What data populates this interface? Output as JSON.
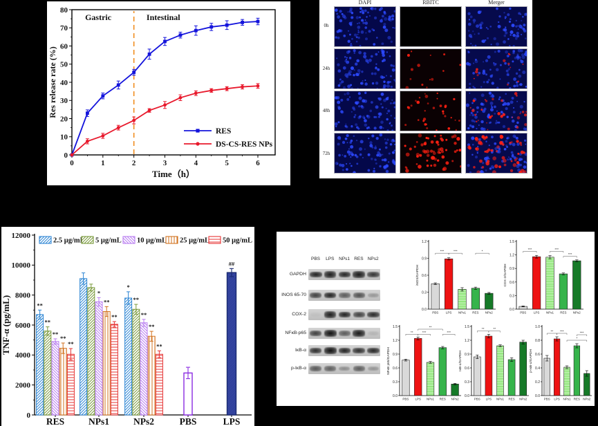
{
  "figure": {
    "background": "#000000"
  },
  "microscopy": {
    "columns": [
      "DAPI",
      "RBITC",
      "Merger"
    ],
    "rows": [
      "0h",
      "24h",
      "48h",
      "72h"
    ],
    "blue_dots_per_image": 88,
    "red_dots_per_row": [
      0,
      14,
      34,
      62
    ],
    "colors": {
      "dapi_bg": "#04084a",
      "rbitc_bg": "#0a0103",
      "merge_bg": "#060a4c",
      "blue_dot": "#2c49ff",
      "red_dot": "#ff2012"
    }
  },
  "western_blot": {
    "lanes": [
      "PBS",
      "LPS",
      "NPs1",
      "RES",
      "NPs2"
    ],
    "rows": [
      {
        "label": "GAPDH",
        "intensities": [
          0.88,
          0.9,
          0.86,
          0.92,
          0.78
        ]
      },
      {
        "label": "INOS 65-70",
        "intensities": [
          0.72,
          0.88,
          0.58,
          0.64,
          0.26
        ]
      },
      {
        "label": "COX-2",
        "intensities": [
          0.04,
          0.9,
          0.88,
          0.72,
          0.84
        ]
      },
      {
        "label": "NFκB-p65",
        "intensities": [
          0.72,
          0.97,
          0.58,
          0.92,
          0.1
        ]
      },
      {
        "label": "IκB-α",
        "intensities": [
          0.82,
          0.97,
          0.88,
          0.82,
          0.86
        ]
      },
      {
        "label": "p-IκB-α",
        "intensities": [
          0.6,
          0.56,
          0.32,
          0.58,
          0.28
        ]
      }
    ]
  },
  "chart_data": [
    {
      "id": "res-release",
      "type": "line",
      "xlabel": "Time（h）",
      "ylabel": "Res release rate (%)",
      "xlim": [
        0,
        6
      ],
      "ylim": [
        0,
        80
      ],
      "xticks": [
        0,
        1,
        2,
        3,
        4,
        5,
        6
      ],
      "yticks": [
        0,
        10,
        20,
        30,
        40,
        50,
        60,
        70,
        80
      ],
      "region_labels": [
        {
          "text": "Gastric",
          "x": 0.85
        },
        {
          "text": "Intestinal",
          "x": 2.95
        }
      ],
      "divider": {
        "x": 2,
        "color": "#f08c1e"
      },
      "x": [
        0,
        0.5,
        1,
        1.5,
        2,
        2.5,
        3,
        3.5,
        4,
        4.5,
        5,
        5.5,
        6
      ],
      "series": [
        {
          "name": "RES",
          "color": "#1414dc",
          "marker": "square",
          "values": [
            0,
            23,
            32.5,
            38.5,
            45.5,
            55.5,
            62.5,
            66,
            68.5,
            70.5,
            71.5,
            73,
            73.5
          ],
          "errors": [
            0,
            1.8,
            1.6,
            2.2,
            1.6,
            2.8,
            2.2,
            1.6,
            2.6,
            2.0,
            2.4,
            1.6,
            1.8
          ]
        },
        {
          "name": "DS-CS-RES NPs",
          "color": "#e8192c",
          "marker": "circle",
          "values": [
            0,
            7.5,
            10.5,
            15,
            19,
            24.5,
            27.5,
            31.5,
            34,
            35.5,
            36.5,
            37.5,
            38
          ],
          "errors": [
            0,
            1.4,
            1.4,
            1.3,
            1.9,
            1.0,
            1.9,
            1.6,
            1.3,
            1.0,
            1.1,
            1.2,
            1.3
          ]
        }
      ]
    },
    {
      "id": "tnf-alpha",
      "type": "bar",
      "ylabel": "TNF-α (pg/mL)",
      "ylim": [
        0,
        12000
      ],
      "yticks": [
        0,
        2000,
        4000,
        6000,
        8000,
        10000,
        12000
      ],
      "categories": [
        "RES",
        "NPs1",
        "NPs2",
        "PBS",
        "LPS"
      ],
      "doses": [
        "2.5 μg/mL",
        "5 μg/mL",
        "10 μg/mL",
        "25 μg/mL",
        "50 μg/mL"
      ],
      "dose_styles": [
        {
          "color": "#2e86d4",
          "hatch": "diag"
        },
        {
          "color": "#7a9a3c",
          "hatch": "diag"
        },
        {
          "color": "#b87cf0",
          "hatch": "diag-back"
        },
        {
          "color": "#d2721e",
          "hatch": "vert"
        },
        {
          "color": "#e63232",
          "hatch": "horiz"
        }
      ],
      "groups": [
        {
          "name": "RES",
          "values": [
            6700,
            5600,
            4900,
            4450,
            4050
          ],
          "errors": [
            300,
            280,
            180,
            350,
            380
          ],
          "sig": [
            "**",
            "**",
            "**",
            "**",
            "**"
          ]
        },
        {
          "name": "NPs1",
          "values": [
            9100,
            8500,
            7550,
            6900,
            6050
          ],
          "errors": [
            380,
            230,
            280,
            330,
            180
          ],
          "sig": [
            "",
            "",
            "*",
            "**",
            "**"
          ]
        },
        {
          "name": "NPs2",
          "values": [
            7800,
            7050,
            6150,
            5250,
            4050
          ],
          "errors": [
            420,
            330,
            230,
            330,
            230
          ],
          "sig": [
            "*",
            "**",
            "**",
            "**",
            "**"
          ]
        }
      ],
      "single_bars": [
        {
          "name": "PBS",
          "value": 2800,
          "error": 380,
          "style": "outline",
          "color": "#8a2be2",
          "sig": ""
        },
        {
          "name": "LPS",
          "value": 9500,
          "error": 270,
          "style": "solid",
          "color": "#2b3c96",
          "sig": "##"
        }
      ]
    },
    {
      "id": "inos-gapdh",
      "type": "bar",
      "ylabel": "iNOS/GAPDH",
      "categories": [
        "PBS",
        "LPS",
        "NPs1",
        "RES",
        "NPs2"
      ],
      "ylim": [
        0,
        1.2
      ],
      "yticks": [
        0,
        0.3,
        0.6,
        0.9,
        1.2
      ],
      "values": [
        0.45,
        0.89,
        0.35,
        0.37,
        0.28
      ],
      "errors": [
        0.015,
        0.02,
        0.03,
        0.02,
        0.015
      ],
      "brackets": [
        {
          "a": 0,
          "b": 1,
          "label": "***",
          "y": 0.99
        },
        {
          "a": 1,
          "b": 2,
          "label": "***",
          "y": 0.99
        },
        {
          "a": 3,
          "b": 4,
          "label": "*",
          "y": 0.99
        }
      ]
    },
    {
      "id": "cox2-gapdh",
      "type": "bar",
      "ylabel": "COX-2/GAPDH",
      "categories": [
        "PBS",
        "LPS",
        "NPs1",
        "RES",
        "NPs2"
      ],
      "ylim": [
        0,
        1.5
      ],
      "yticks": [
        0,
        0.3,
        0.6,
        0.9,
        1.2,
        1.5
      ],
      "values": [
        0.06,
        1.16,
        1.15,
        0.78,
        1.07
      ],
      "errors": [
        0.01,
        0.03,
        0.035,
        0.02,
        0.02
      ],
      "brackets": [
        {
          "a": 0,
          "b": 1,
          "label": "***",
          "y": 1.28
        },
        {
          "a": 2,
          "b": 3,
          "label": "***",
          "y": 1.28
        },
        {
          "a": 3,
          "b": 4,
          "label": "***",
          "y": 1.17
        }
      ]
    },
    {
      "id": "nfkb-gapdh",
      "type": "bar",
      "ylabel": "NFκB p65/GAPDH",
      "categories": [
        "PBS",
        "LPS",
        "NPs1",
        "RES",
        "NPs2"
      ],
      "ylim": [
        0,
        1.5
      ],
      "yticks": [
        0,
        0.3,
        0.6,
        0.9,
        1.2,
        1.5
      ],
      "values": [
        0.77,
        1.24,
        0.72,
        1.04,
        0.25
      ],
      "errors": [
        0.02,
        0.03,
        0.02,
        0.025,
        0.015
      ],
      "brackets": [
        {
          "a": 0,
          "b": 1,
          "label": "**",
          "y": 1.33
        },
        {
          "a": 1,
          "b": 2,
          "label": "***",
          "y": 1.33
        },
        {
          "a": 1,
          "b": 3,
          "label": "**",
          "y": 1.44
        },
        {
          "a": 3,
          "b": 4,
          "label": "***",
          "y": 1.33
        }
      ]
    },
    {
      "id": "ikb-gapdh",
      "type": "bar",
      "ylabel": "IκB-α/GAPDH",
      "categories": [
        "PBS",
        "LPS",
        "NPs1",
        "RES",
        "NPs2"
      ],
      "ylim": [
        0,
        1.5
      ],
      "yticks": [
        0,
        0.3,
        0.6,
        0.9,
        1.2,
        1.5
      ],
      "values": [
        0.84,
        1.29,
        1.08,
        0.78,
        1.16
      ],
      "errors": [
        0.04,
        0.04,
        0.02,
        0.04,
        0.04
      ],
      "brackets": [
        {
          "a": 0,
          "b": 1,
          "label": "**",
          "y": 1.4
        },
        {
          "a": 1,
          "b": 2,
          "label": "**",
          "y": 1.4
        }
      ]
    },
    {
      "id": "pikb-gapdh",
      "type": "bar",
      "ylabel": "p-IκB-α/GAPDH",
      "categories": [
        "PBS",
        "LPS",
        "NPs1",
        "RES",
        "NPs2"
      ],
      "ylim": [
        0,
        1.0
      ],
      "yticks": [
        0,
        0.2,
        0.4,
        0.6,
        0.8,
        1.0
      ],
      "values": [
        0.54,
        0.82,
        0.41,
        0.72,
        0.32
      ],
      "errors": [
        0.04,
        0.03,
        0.02,
        0.03,
        0.04
      ],
      "brackets": [
        {
          "a": 0,
          "b": 1,
          "label": "**",
          "y": 0.9
        },
        {
          "a": 1,
          "b": 2,
          "label": "***",
          "y": 0.9
        },
        {
          "a": 2,
          "b": 4,
          "label": "*",
          "y": 0.8
        },
        {
          "a": 3,
          "b": 4,
          "label": "***",
          "y": 0.88
        }
      ]
    }
  ],
  "mini_bar_colors": [
    "#d9d9d9",
    "#ee1212",
    "#79e25e",
    "#36b44b",
    "#167a28"
  ]
}
